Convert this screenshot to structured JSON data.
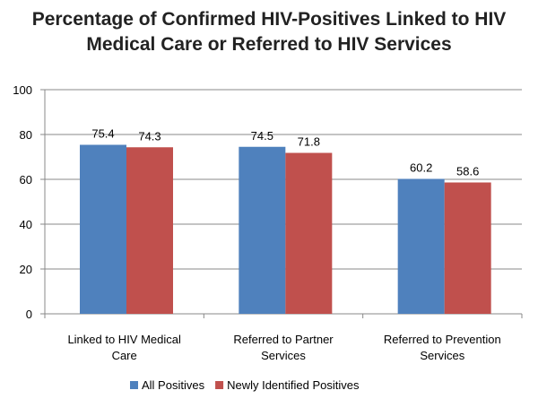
{
  "chart_data": {
    "type": "bar",
    "title": "Percentage of Confirmed HIV-Positives Linked to HIV Medical Care or Referred to HIV Services",
    "title_lines": [
      "Percentage of Confirmed HIV-Positives Linked to HIV",
      "Medical Care or Referred to HIV Services"
    ],
    "categories": [
      [
        "Linked to HIV Medical",
        "Care"
      ],
      [
        "Referred to Partner",
        "Services"
      ],
      [
        "Referred to Prevention",
        "Services"
      ]
    ],
    "series": [
      {
        "name": "All Positives",
        "values": [
          75.4,
          74.5,
          60.2
        ],
        "color": "#4f81bd"
      },
      {
        "name": "Newly Identified Positives",
        "values": [
          74.3,
          71.8,
          58.6
        ],
        "color": "#c0504d"
      }
    ],
    "xlabel": "",
    "ylabel": "",
    "ylim": [
      0,
      100
    ],
    "yticks": [
      0,
      20,
      40,
      60,
      80,
      100
    ],
    "grid": true,
    "legend": "bottom"
  }
}
